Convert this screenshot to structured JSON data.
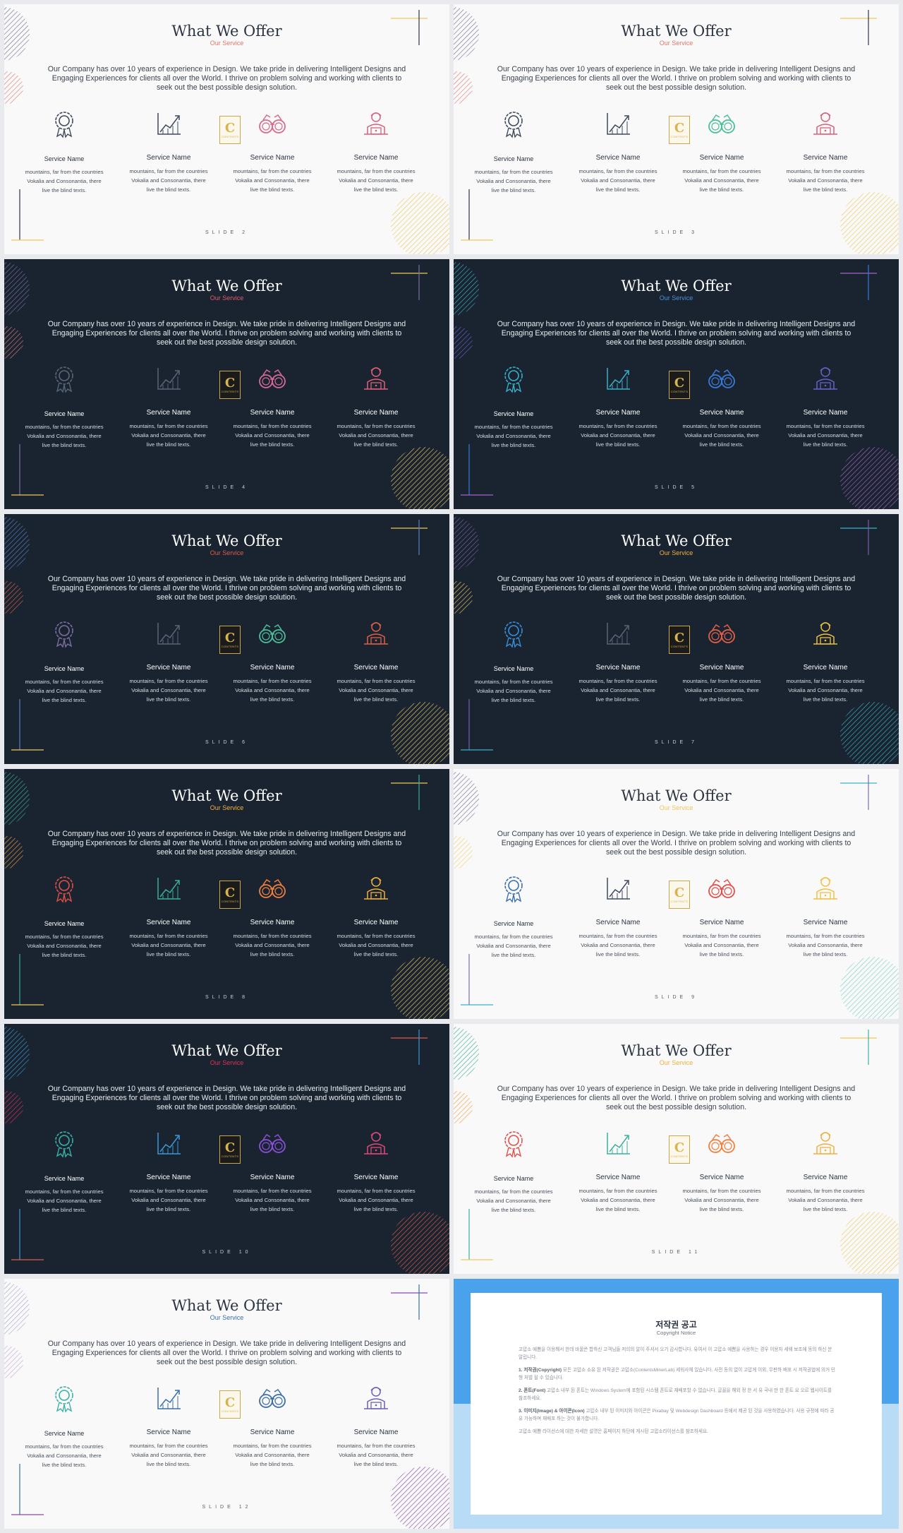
{
  "common": {
    "title": "What We Offer",
    "subtitle": "Our Service",
    "intro": "Our Company has over 10 years of experience in Design. We take pride in delivering Intelligent Designs and Engaging Experiences for clients all over the World. I thrive on problem solving and working with clients to seek out the best possible design solution.",
    "service_name": "Service Name",
    "service_desc": "mountains, far from the countries Vokalia and Consonantia, there live the blind texts.",
    "logo_letter": "C",
    "logo_sub": "CONTENTS"
  },
  "slides": [
    {
      "theme": "light",
      "num": "SLIDE 2",
      "subtitle_color": "#e0786a",
      "icons": [
        "#3d4a5c",
        "#3d4a5c",
        "#d86a8a",
        "#d8607a"
      ],
      "circle_top": "#7a6fa0",
      "circle_mid": "#e07a7a",
      "circle_big": "#f0c75a",
      "line_h": "#f0c75a",
      "line_v": "#2b3442",
      "corner_h": "#f0c75a",
      "corner_v": "#2b3442"
    },
    {
      "theme": "light",
      "num": "SLIDE 3",
      "subtitle_color": "#e0786a",
      "icons": [
        "#3d4a5c",
        "#3d4a5c",
        "#4bbf9a",
        "#d8607a"
      ],
      "circle_top": "#7a6fa0",
      "circle_mid": "#e07a7a",
      "circle_big": "#f0c75a",
      "line_h": "#f0c75a",
      "line_v": "#2b3442",
      "corner_h": "#f0c75a",
      "corner_v": "#2b3442"
    },
    {
      "theme": "dark",
      "num": "SLIDE 4",
      "subtitle_color": "#e05a6a",
      "icons": [
        "#5a6577",
        "#5a6577",
        "#d86a9a",
        "#e0607a"
      ],
      "circle_top": "#7a6fa0",
      "circle_mid": "#e07a7a",
      "circle_big": "#f0c75a",
      "line_h": "#f0c75a",
      "line_v": "#7a6fa0",
      "corner_h": "#f0c75a",
      "corner_v": "#7a6fa0"
    },
    {
      "theme": "dark",
      "num": "SLIDE 5",
      "subtitle_color": "#4a8fd8",
      "icons": [
        "#3ab0c8",
        "#3ab0c8",
        "#3a7ad8",
        "#6a60c8"
      ],
      "circle_top": "#3ab0c8",
      "circle_mid": "#6a60c8",
      "circle_big": "#a860c8",
      "line_h": "#a860c8",
      "line_v": "#3a7ad8",
      "corner_h": "#a860c8",
      "corner_v": "#3a7ad8"
    },
    {
      "theme": "dark",
      "num": "SLIDE 6",
      "subtitle_color": "#e05a4a",
      "icons": [
        "#7a6fa0",
        "#5a6577",
        "#4bbf9a",
        "#e0604a"
      ],
      "circle_top": "#5a7fc8",
      "circle_mid": "#e0604a",
      "circle_big": "#f0c75a",
      "line_h": "#f0c75a",
      "line_v": "#5a7fc8",
      "corner_h": "#f0c75a",
      "corner_v": "#5a7fc8"
    },
    {
      "theme": "dark",
      "num": "SLIDE 7",
      "subtitle_color": "#f0b040",
      "icons": [
        "#3a8fd8",
        "#5a6577",
        "#e0604a",
        "#f0c040"
      ],
      "circle_top": "#7a5fa8",
      "circle_mid": "#f0c75a",
      "circle_big": "#3ab0c8",
      "line_h": "#3ab0c8",
      "line_v": "#7a5fa8",
      "corner_h": "#3ab0c8",
      "corner_v": "#7a5fa8"
    },
    {
      "theme": "dark",
      "num": "SLIDE 8",
      "subtitle_color": "#f0b040",
      "icons": [
        "#e0504a",
        "#3ab09a",
        "#f08040",
        "#f0b040"
      ],
      "circle_top": "#3ab09a",
      "circle_mid": "#f0a040",
      "circle_big": "#f0c75a",
      "line_h": "#f0c75a",
      "line_v": "#3ab09a",
      "corner_h": "#f0c75a",
      "corner_v": "#3ab09a"
    },
    {
      "theme": "light",
      "num": "SLIDE 9",
      "subtitle_color": "#f0c75a",
      "icons": [
        "#3a6fa8",
        "#3d4a5c",
        "#e0504a",
        "#f0c040"
      ],
      "circle_top": "#7a6fa0",
      "circle_mid": "#f0d070",
      "circle_big": "#7ad0c8",
      "line_h": "#3ab0c8",
      "line_v": "#7a6fa0",
      "corner_h": "#3ab0c8",
      "corner_v": "#7a6fa0"
    },
    {
      "theme": "dark",
      "num": "SLIDE 10",
      "subtitle_color": "#e0305a",
      "icons": [
        "#3ab0a8",
        "#3a9ad8",
        "#8a50d8",
        "#e04a7a"
      ],
      "circle_top": "#3a9ad8",
      "circle_mid": "#e0305a",
      "circle_big": "#e05a4a",
      "line_h": "#e05a4a",
      "line_v": "#3a9ad8",
      "corner_h": "#e05a4a",
      "corner_v": "#3a9ad8"
    },
    {
      "theme": "light",
      "num": "SLIDE 11",
      "subtitle_color": "#f0b040",
      "icons": [
        "#e0504a",
        "#3ab09a",
        "#f08040",
        "#f0b040"
      ],
      "circle_top": "#3ab09a",
      "circle_mid": "#f0a040",
      "circle_big": "#f0c75a",
      "line_h": "#f0c75a",
      "line_v": "#3ab09a",
      "corner_h": "#f0c75a",
      "corner_v": "#3ab09a"
    },
    {
      "theme": "light",
      "num": "SLIDE 12",
      "subtitle_color": "#3a6fa8",
      "icons": [
        "#3ab0a8",
        "#3a6fa8",
        "#3a6fa8",
        "#6a60b8"
      ],
      "circle_top": "#a8a8d8",
      "circle_mid": "#c8a8d8",
      "circle_big": "#8a4aa8",
      "line_h": "#8a4aa8",
      "line_v": "#3a6fa8",
      "corner_h": "#8a4aa8",
      "corner_v": "#3a6fa8"
    }
  ],
  "copyright": {
    "title": "저작권 공고",
    "subtitle": "Copyright Notice",
    "paragraphs": [
      {
        "head": "",
        "text": "고맙소 예쁨을 이용해서 한데 바꿀쓴 합하신 고객님들 저희의 알이 주셔서 오기 감사합니다. 유여서 이 고맙소 예쁨을 사용하는 경우 이용자 세웨 보조에 동의 하신 분 알립니다."
      },
      {
        "head": "1. 저작권(Copyright)",
        "text": "모든 고맙소 소유 된 저작권은 고맙소(ContentsMinerLab) 세워사체 있습니다. 사전 동의 없이 고맙게 이외, 무판하 배포 시 저작권법에 의거 민형 처벌 될 수 있습니다."
      },
      {
        "head": "2. 폰트(Font)",
        "text": "고맙소 내부 된 폰트는 Windows System에 포함된 시스템 폰트로 재배포할 수 없습니다. 글꼴을 해외 정 한 서 유 국내 만 한 폰트 요 오르 웹사이트를 참조하세요."
      },
      {
        "head": "3. 이미지(Image) & 아이콘(Icon)",
        "text": "고맙소 내부 된 이미지와 아이콘은 Pixabay 및 Webdesign Dashboard 등에서 제공 된 것을 사용하였습니다. 사용 규정에 따라 공유 가능하며 재배포 하는 것이 불가합니다."
      },
      {
        "head": "",
        "text": "고맙소 예쁨 라이선스에 대한 자세한 설명은 홈페이지 하단에 게시된 고맙소라이선스를 참조하세요."
      }
    ]
  }
}
